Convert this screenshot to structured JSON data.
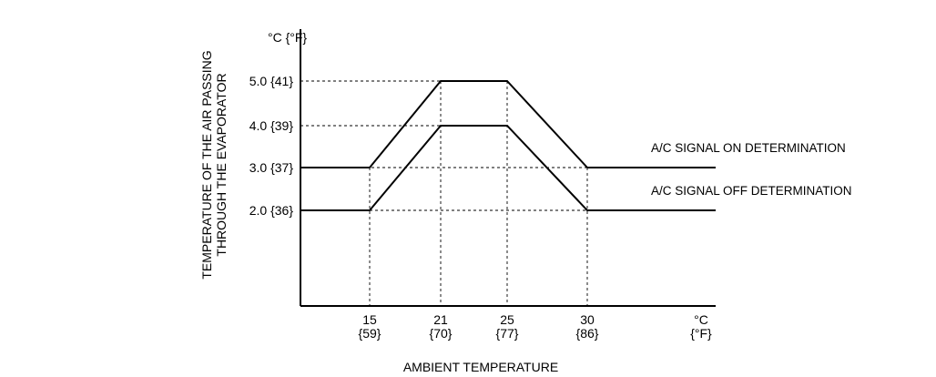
{
  "chart_data": {
    "type": "line",
    "xlabel": "AMBIENT TEMPERATURE",
    "ylabel": [
      "TEMPERATURE OF THE AIR PASSING",
      "THROUGH THE EVAPORATOR"
    ],
    "y_unit": "°C {°F}",
    "x_unit": [
      "°C",
      "{°F}"
    ],
    "x_ticks": [
      {
        "value": 15,
        "label": "15",
        "sublabel": "{59}"
      },
      {
        "value": 21,
        "label": "21",
        "sublabel": "{70}"
      },
      {
        "value": 25,
        "label": "25",
        "sublabel": "{77}"
      },
      {
        "value": 30,
        "label": "30",
        "sublabel": "{86}"
      }
    ],
    "y_ticks": [
      {
        "value": 2.0,
        "label": "2.0 {36}"
      },
      {
        "value": 3.0,
        "label": "3.0 {37}"
      },
      {
        "value": 4.0,
        "label": "4.0 {39}"
      },
      {
        "value": 5.0,
        "label": "5.0 {41}"
      }
    ],
    "series": [
      {
        "name": "A/C SIGNAL ON  DETERMINATION",
        "x": [
          15,
          21,
          25,
          30
        ],
        "y": [
          3.0,
          5.0,
          5.0,
          3.0
        ]
      },
      {
        "name": "A/C SIGNAL OFF DETERMINATION",
        "x": [
          15,
          21,
          25,
          30
        ],
        "y": [
          2.0,
          4.0,
          4.0,
          2.0
        ]
      }
    ],
    "grid": "dashed guide lines at breakpoints"
  }
}
